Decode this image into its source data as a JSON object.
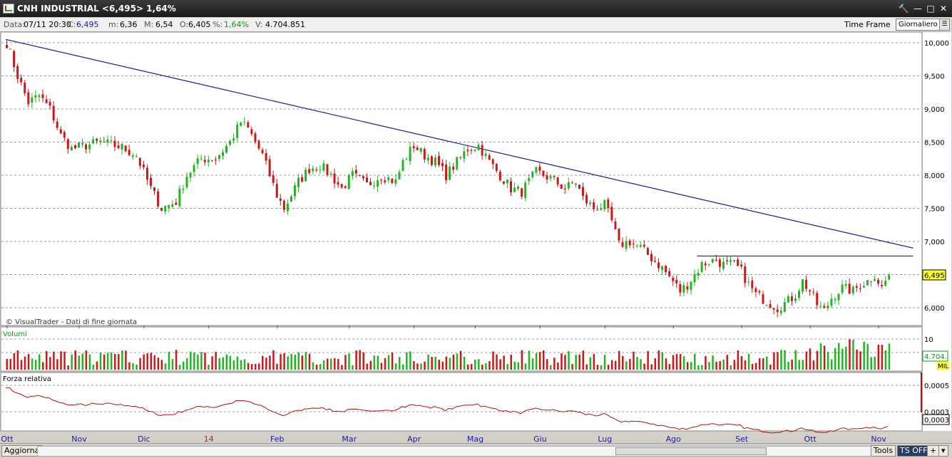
{
  "window": {
    "title": "CNH INDUSTRIAL <6,495> 1,64%",
    "buttons": {
      "tools": "🔨",
      "minimize": "—",
      "maximize": "□",
      "close": "✕"
    }
  },
  "infobar": {
    "date_label": "Data:",
    "date_value": "07/11 20:30",
    "close_label": "C:",
    "close_value": "6,495",
    "low_label": "m:",
    "low_value": "6,36",
    "high_label": "M:",
    "high_value": "6,54",
    "open_label": "O:",
    "open_value": "6,405",
    "pct_label": "%:",
    "pct_value": "1,64%",
    "vol_label": "V:",
    "vol_value": "4.704.851",
    "timeframe_label": "Time Frame",
    "timeframe_value": "Giornaliero"
  },
  "colors": {
    "up": "#22b522",
    "down": "#cc1818",
    "trendline": "#1b1b99",
    "grid": "#9a9a9a",
    "rs_line": "#b01010",
    "last_price_bg": "#ffff33"
  },
  "chart_data": {
    "type": "candlestick",
    "price_axis_ticks": [
      "10,000",
      "9,500",
      "9,000",
      "8,500",
      "8,000",
      "7,500",
      "7,000",
      "6,500",
      "6,000"
    ],
    "price_range": [
      5.72,
      10.2
    ],
    "last_price": "6,495",
    "watermark": "© VisualTrader - Dati di fine giornata",
    "x_labels": [
      "Ott",
      "Nov",
      "Dic",
      "14",
      "Feb",
      "Mar",
      "Apr",
      "Mag",
      "Giu",
      "Lug",
      "Ago",
      "Set",
      "Ott",
      "Nov"
    ],
    "x_positions": [
      0,
      20,
      38,
      56,
      75,
      95,
      113,
      130,
      148,
      166,
      185,
      204,
      223,
      242
    ],
    "trendlines": [
      {
        "from": [
          0,
          10.05
        ],
        "to": [
          252,
          6.9
        ]
      },
      {
        "from": [
          192,
          6.78
        ],
        "to": [
          252,
          6.78
        ]
      }
    ],
    "anchors": [
      [
        0,
        10.0
      ],
      [
        3,
        9.5
      ],
      [
        6,
        9.1
      ],
      [
        9,
        9.2
      ],
      [
        12,
        9.0
      ],
      [
        15,
        8.6
      ],
      [
        18,
        8.4
      ],
      [
        22,
        8.45
      ],
      [
        26,
        8.5
      ],
      [
        32,
        8.42
      ],
      [
        36,
        8.3
      ],
      [
        40,
        7.8
      ],
      [
        43,
        7.5
      ],
      [
        47,
        7.6
      ],
      [
        50,
        8.0
      ],
      [
        54,
        8.25
      ],
      [
        58,
        8.25
      ],
      [
        62,
        8.5
      ],
      [
        65,
        8.8
      ],
      [
        67,
        8.7
      ],
      [
        69,
        8.5
      ],
      [
        71,
        8.3
      ],
      [
        73,
        8.0
      ],
      [
        75,
        7.7
      ],
      [
        77,
        7.5
      ],
      [
        79,
        7.7
      ],
      [
        81,
        7.9
      ],
      [
        84,
        8.1
      ],
      [
        87,
        8.15
      ],
      [
        90,
        8.0
      ],
      [
        93,
        7.8
      ],
      [
        96,
        8.0
      ],
      [
        100,
        7.85
      ],
      [
        104,
        8.0
      ],
      [
        108,
        7.9
      ],
      [
        110,
        8.2
      ],
      [
        113,
        8.45
      ],
      [
        116,
        8.3
      ],
      [
        119,
        8.2
      ],
      [
        122,
        8.0
      ],
      [
        125,
        8.2
      ],
      [
        128,
        8.4
      ],
      [
        131,
        8.45
      ],
      [
        134,
        8.2
      ],
      [
        137,
        8.0
      ],
      [
        140,
        7.8
      ],
      [
        143,
        7.75
      ],
      [
        147,
        8.05
      ],
      [
        151,
        7.95
      ],
      [
        155,
        7.8
      ],
      [
        158,
        7.9
      ],
      [
        160,
        7.65
      ],
      [
        163,
        7.5
      ],
      [
        166,
        7.55
      ],
      [
        168,
        7.3
      ],
      [
        170,
        6.95
      ],
      [
        173,
        7.0
      ],
      [
        176,
        6.9
      ],
      [
        179,
        6.75
      ],
      [
        182,
        6.6
      ],
      [
        185,
        6.4
      ],
      [
        187,
        6.25
      ],
      [
        189,
        6.35
      ],
      [
        191,
        6.5
      ],
      [
        193,
        6.65
      ],
      [
        195,
        6.7
      ],
      [
        197,
        6.72
      ],
      [
        199,
        6.65
      ],
      [
        202,
        6.65
      ],
      [
        204,
        6.55
      ],
      [
        206,
        6.35
      ],
      [
        208,
        6.2
      ],
      [
        211,
        6.1
      ],
      [
        214,
        6.0
      ],
      [
        217,
        6.1
      ],
      [
        219,
        6.2
      ],
      [
        221,
        6.4
      ],
      [
        223,
        6.25
      ],
      [
        225,
        6.05
      ],
      [
        227,
        5.95
      ],
      [
        229,
        6.15
      ],
      [
        232,
        6.3
      ],
      [
        235,
        6.25
      ],
      [
        237,
        6.35
      ],
      [
        239,
        6.4
      ],
      [
        241,
        6.5
      ],
      [
        243,
        6.3
      ],
      [
        245,
        6.495
      ]
    ],
    "volume_label": "Volumi",
    "volume_ticks": [
      "10"
    ],
    "volume_last": "4.704.",
    "volume_unit": "MIL",
    "rs_label": "Forza relativa",
    "rs_ticks": [
      "0,0005",
      "0,0003"
    ],
    "rs_last": "0,0003"
  },
  "statusbar": {
    "refresh": "Aggiorna",
    "tools": "Tools",
    "ts": "TS OFF"
  }
}
